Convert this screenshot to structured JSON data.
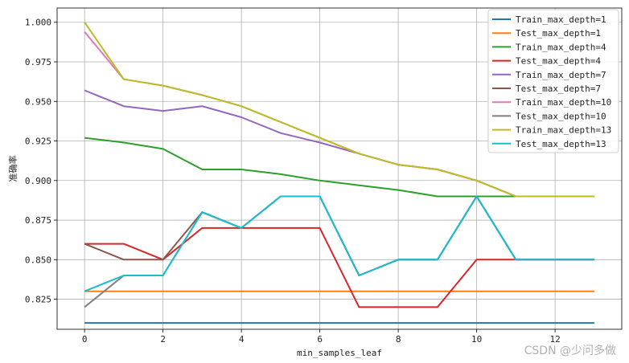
{
  "chart_data": {
    "type": "line",
    "xlabel": "min_samples_leaf",
    "ylabel": "准确率",
    "xlim": [
      -0.7,
      13.7
    ],
    "ylim": [
      0.806,
      1.009
    ],
    "xticks": [
      0,
      2,
      4,
      6,
      8,
      10,
      12
    ],
    "xtick_labels": [
      "0",
      "2",
      "4",
      "6",
      "8",
      "10",
      "12"
    ],
    "yticks": [
      0.825,
      0.85,
      0.875,
      0.9,
      0.925,
      0.95,
      0.975,
      1.0
    ],
    "ytick_labels": [
      "0.825",
      "0.850",
      "0.875",
      "0.900",
      "0.925",
      "0.950",
      "0.975",
      "1.000"
    ],
    "grid": true,
    "legend_position": "top-right",
    "x": [
      0,
      1,
      2,
      3,
      4,
      5,
      6,
      7,
      8,
      9,
      10,
      11,
      12,
      13
    ],
    "series": [
      {
        "name": "Train_max_depth=1",
        "color": "#1f77b4",
        "values": [
          0.81,
          0.81,
          0.81,
          0.81,
          0.81,
          0.81,
          0.81,
          0.81,
          0.81,
          0.81,
          0.81,
          0.81,
          0.81,
          0.81
        ]
      },
      {
        "name": "Test_max_depth=1",
        "color": "#ff7f0e",
        "values": [
          0.83,
          0.83,
          0.83,
          0.83,
          0.83,
          0.83,
          0.83,
          0.83,
          0.83,
          0.83,
          0.83,
          0.83,
          0.83,
          0.83
        ]
      },
      {
        "name": "Train_max_depth=4",
        "color": "#2ca02c",
        "values": [
          0.927,
          0.924,
          0.92,
          0.907,
          0.907,
          0.904,
          0.9,
          0.897,
          0.894,
          0.89,
          0.89,
          0.89,
          0.89,
          0.89
        ]
      },
      {
        "name": "Test_max_depth=4",
        "color": "#d62728",
        "values": [
          0.86,
          0.86,
          0.85,
          0.87,
          0.87,
          0.87,
          0.87,
          0.82,
          0.82,
          0.82,
          0.85,
          0.85,
          0.85,
          0.85
        ]
      },
      {
        "name": "Train_max_depth=7",
        "color": "#9467bd",
        "values": [
          0.957,
          0.947,
          0.944,
          0.947,
          0.94,
          0.93,
          0.924,
          0.917,
          0.91,
          0.907,
          0.9,
          0.89,
          0.89,
          0.89
        ]
      },
      {
        "name": "Test_max_depth=7",
        "color": "#8c564b",
        "values": [
          0.86,
          0.85,
          0.85,
          0.88,
          0.87,
          0.89,
          0.89,
          0.84,
          0.85,
          0.85,
          0.89,
          0.85,
          0.85,
          0.85
        ]
      },
      {
        "name": "Train_max_depth=10",
        "color": "#e377c2",
        "values": [
          0.994,
          0.964,
          0.96,
          0.954,
          0.947,
          0.937,
          0.927,
          0.917,
          0.91,
          0.907,
          0.9,
          0.89,
          0.89,
          0.89
        ]
      },
      {
        "name": "Test_max_depth=10",
        "color": "#7f7f7f",
        "values": [
          0.82,
          0.84,
          0.84,
          0.88,
          0.87,
          0.89,
          0.89,
          0.84,
          0.85,
          0.85,
          0.89,
          0.85,
          0.85,
          0.85
        ]
      },
      {
        "name": "Train_max_depth=13",
        "color": "#bcbd22",
        "values": [
          1.0,
          0.964,
          0.96,
          0.954,
          0.947,
          0.937,
          0.927,
          0.917,
          0.91,
          0.907,
          0.9,
          0.89,
          0.89,
          0.89
        ]
      },
      {
        "name": "Test_max_depth=13",
        "color": "#17becf",
        "values": [
          0.83,
          0.84,
          0.84,
          0.88,
          0.87,
          0.89,
          0.89,
          0.84,
          0.85,
          0.85,
          0.89,
          0.85,
          0.85,
          0.85
        ]
      }
    ]
  },
  "watermark": "CSDN @少问多做"
}
